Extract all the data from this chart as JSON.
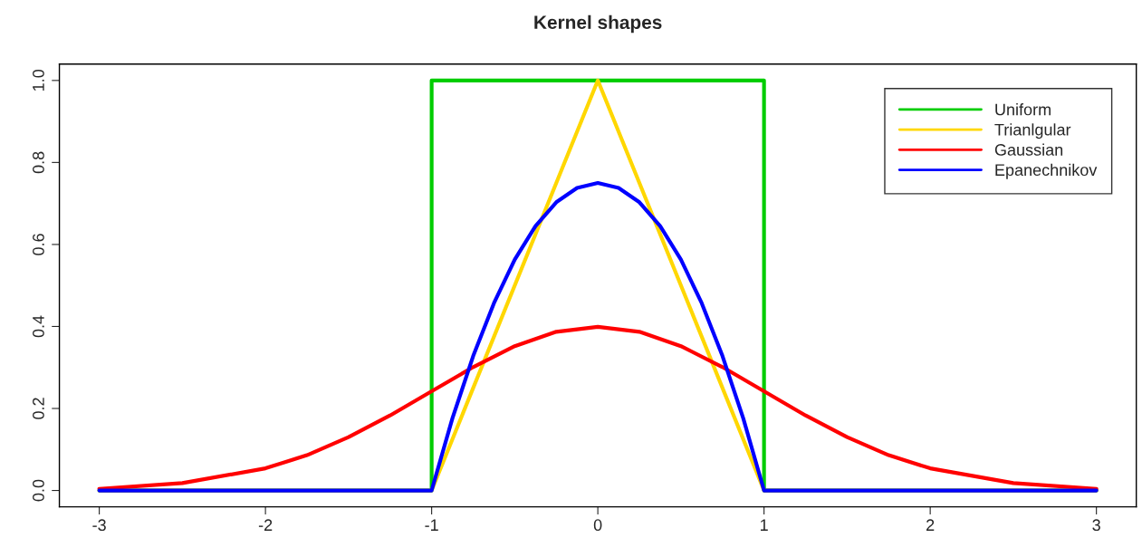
{
  "chart_data": {
    "type": "line",
    "title": "Kernel shapes",
    "xlim": [
      -3.24,
      3.24
    ],
    "ylim": [
      -0.04,
      1.04
    ],
    "xticks": [
      -3,
      -2,
      -1,
      0,
      1,
      2,
      3
    ],
    "yticks": [
      {
        "value": 0,
        "label": "0.0"
      },
      0.2,
      0.4,
      0.6,
      0.8,
      {
        "value": 1,
        "label": "1.0"
      }
    ],
    "grid": false,
    "legend": "top right",
    "marker": "none",
    "line_style": "solid",
    "series": [
      {
        "name": "Uniform",
        "color": "#00cd00",
        "x": [
          -3,
          -1,
          -1,
          1,
          1,
          3
        ],
        "values": [
          0,
          0,
          1,
          1,
          0,
          0
        ]
      },
      {
        "name": "Trianlgular",
        "color": "#ffd700",
        "x": [
          -3,
          -1,
          0,
          1,
          3
        ],
        "values": [
          0,
          0,
          1,
          0,
          0
        ]
      },
      {
        "name": "Gaussian",
        "color": "#ff0000",
        "x": [
          -3,
          -2.5,
          -2,
          -1.75,
          -1.5,
          -1.25,
          -1,
          -0.75,
          -0.5,
          -0.25,
          0,
          0.25,
          0.5,
          0.75,
          1,
          1.25,
          1.5,
          1.75,
          2,
          2.5,
          3
        ],
        "values": [
          0.004,
          0.018,
          0.054,
          0.086,
          0.13,
          0.183,
          0.242,
          0.301,
          0.352,
          0.387,
          0.399,
          0.387,
          0.352,
          0.301,
          0.242,
          0.183,
          0.13,
          0.086,
          0.054,
          0.018,
          0.004
        ]
      },
      {
        "name": "Epanechnikov",
        "color": "#0000ff",
        "x": [
          -3,
          -1,
          -0.875,
          -0.75,
          -0.625,
          -0.5,
          -0.375,
          -0.25,
          -0.125,
          0,
          0.125,
          0.25,
          0.375,
          0.5,
          0.625,
          0.75,
          0.875,
          1,
          3
        ],
        "values": [
          0,
          0,
          0.176,
          0.328,
          0.457,
          0.563,
          0.645,
          0.703,
          0.738,
          0.75,
          0.738,
          0.703,
          0.645,
          0.563,
          0.457,
          0.328,
          0.176,
          0,
          0
        ]
      }
    ]
  }
}
